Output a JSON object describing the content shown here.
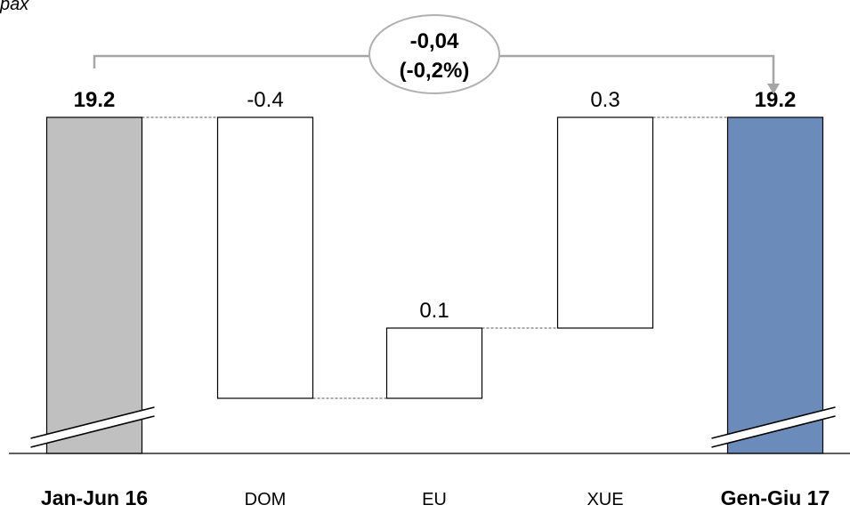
{
  "corner_label": "pax",
  "chart_data": {
    "type": "bar",
    "subtype": "waterfall",
    "categories": [
      "Jan-Jun 16",
      "DOM",
      "EU",
      "XUE",
      "Gen-Giu 17"
    ],
    "values": [
      19.2,
      -0.4,
      0.1,
      0.3,
      19.2
    ],
    "value_labels": [
      "19.2",
      "-0.4",
      "0.1",
      "0.3",
      "19.2"
    ],
    "bar_kinds": [
      "total",
      "delta",
      "delta",
      "delta",
      "total"
    ],
    "annotation": {
      "line1": "-0,04",
      "line2": "(-0,2%)"
    },
    "axis_break": true,
    "colors": {
      "start_bar": "#c0c0c0",
      "end_bar": "#6b8cba",
      "delta_bar": "#ffffff",
      "outline": "#000000",
      "connector": "#555555",
      "bracket": "#a6a6a6",
      "callout_border": "#b0b0b0"
    }
  }
}
